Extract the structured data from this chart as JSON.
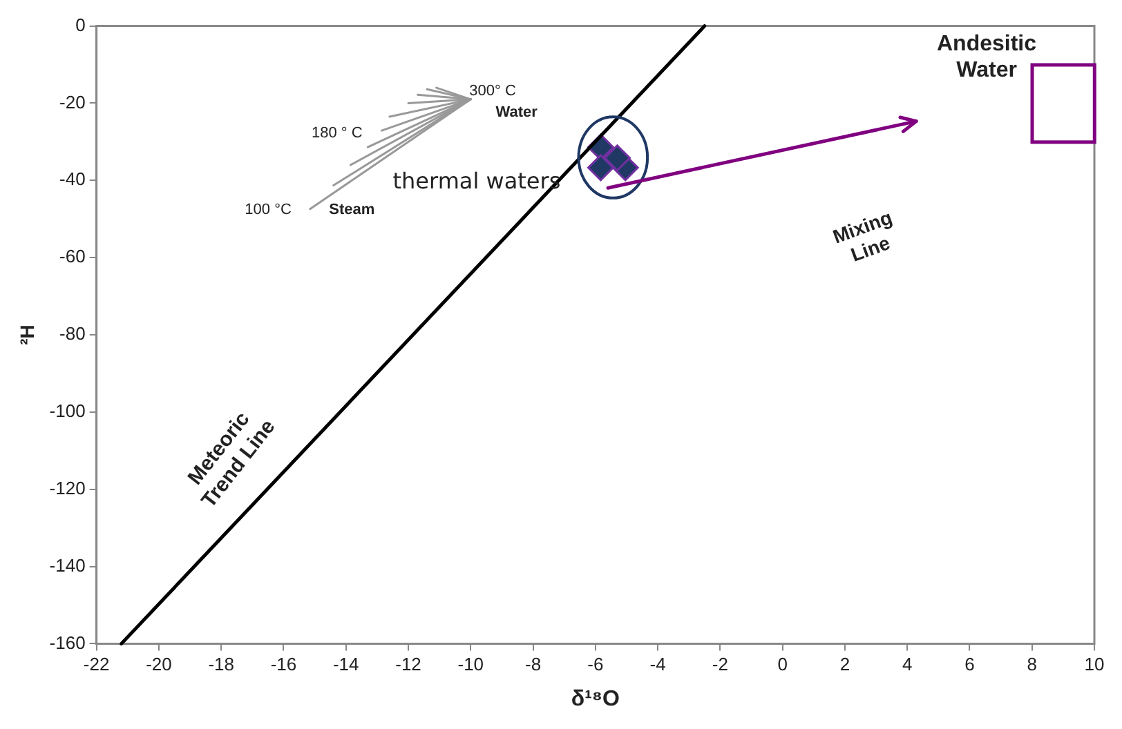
{
  "chart_data": {
    "type": "scatter",
    "xlabel": "δ¹⁸O",
    "ylabel": "²H",
    "xlim": [
      -22,
      10
    ],
    "ylim": [
      -160,
      0
    ],
    "xticks": [
      -22,
      -20,
      -18,
      -16,
      -14,
      -12,
      -10,
      -8,
      -6,
      -4,
      -2,
      0,
      2,
      4,
      6,
      8,
      10
    ],
    "yticks": [
      -160,
      -140,
      -120,
      -100,
      -80,
      -60,
      -40,
      -20,
      0
    ],
    "grid": false,
    "legend": false,
    "series": [
      {
        "type": "line",
        "color": "#000000",
        "x": [
          -21.2,
          -2.5
        ],
        "values": [
          -160,
          0
        ]
      },
      {
        "type": "line",
        "color": "#999999",
        "x": [
          -15.15,
          -10
        ],
        "values": [
          -47.4,
          -19
        ]
      },
      {
        "type": "line",
        "color": "#999999",
        "x": [
          -14.4,
          -10
        ],
        "values": [
          -41.3,
          -19
        ]
      },
      {
        "type": "line",
        "color": "#999999",
        "x": [
          -13.85,
          -10
        ],
        "values": [
          -36,
          -19
        ]
      },
      {
        "type": "line",
        "color": "#999999",
        "x": [
          -13.3,
          -10
        ],
        "values": [
          -31.4,
          -19
        ]
      },
      {
        "type": "line",
        "color": "#999999",
        "x": [
          -12.85,
          -10
        ],
        "values": [
          -27.1,
          -19
        ]
      },
      {
        "type": "line",
        "color": "#999999",
        "x": [
          -12.6,
          -10
        ],
        "values": [
          -23.5,
          -19
        ]
      },
      {
        "type": "line",
        "color": "#999999",
        "x": [
          -12.0,
          -10
        ],
        "values": [
          -20,
          -19
        ]
      },
      {
        "type": "line",
        "color": "#999999",
        "x": [
          -11.7,
          -10
        ],
        "values": [
          -17.8,
          -19
        ]
      },
      {
        "type": "line",
        "color": "#999999",
        "x": [
          -11.4,
          -10
        ],
        "values": [
          -16.4,
          -19
        ]
      },
      {
        "type": "line",
        "color": "#999999",
        "x": [
          -11.1,
          -10
        ],
        "values": [
          -16,
          -19
        ]
      },
      {
        "type": "scatter",
        "color": "#1f3864",
        "marker": "diamond",
        "x": [
          -5.83,
          -5.83,
          -5.04,
          -5.3
        ],
        "values": [
          -31.4,
          -36.7,
          -36.7,
          -34.2
        ]
      }
    ],
    "annotations": [
      "300° C",
      "Water",
      "180 ° C",
      "100 °C",
      "Steam",
      "thermal waters",
      "Andesitic Water",
      "Mixing Line",
      "Meteoric Trend Line"
    ]
  }
}
